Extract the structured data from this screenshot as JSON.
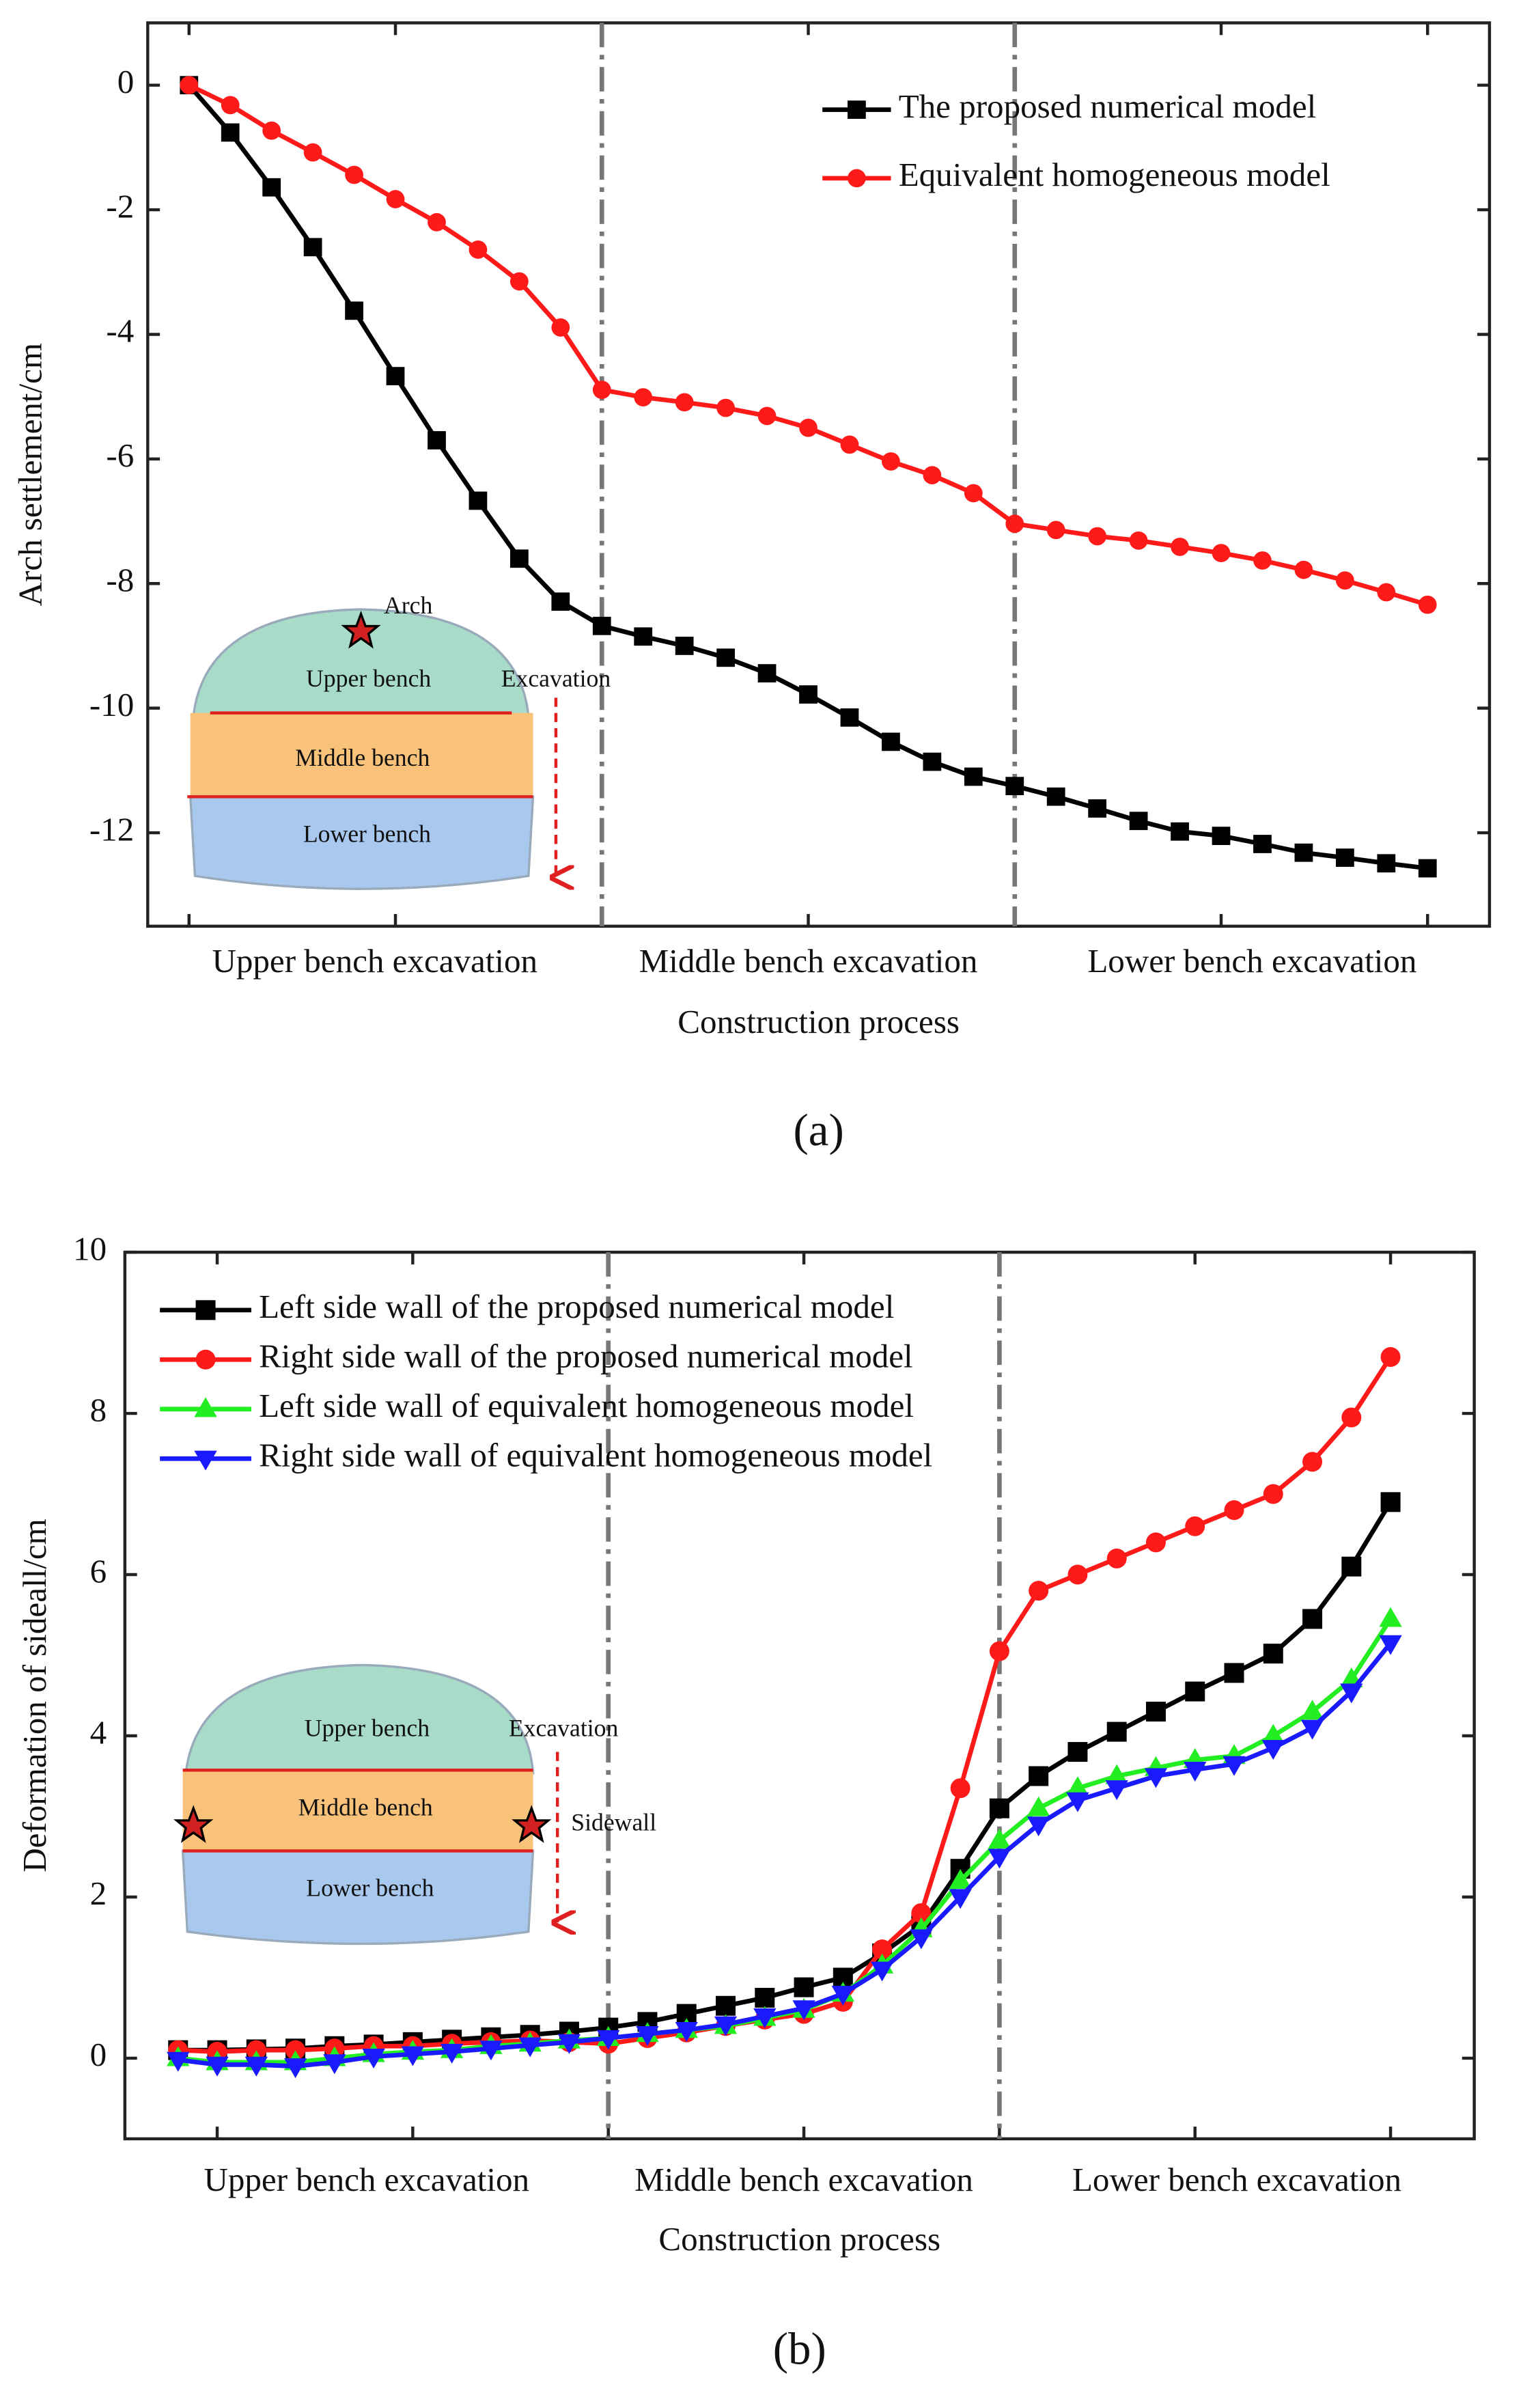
{
  "chart_data": [
    {
      "type": "line",
      "ylabel": "Arch settlement/cm",
      "xlabel": "Construction process",
      "caption": "(a)",
      "stage_labels": [
        "Upper bench excavation",
        "Middle bench excavation",
        "Lower bench excavation"
      ],
      "dividers": [
        10,
        20
      ],
      "x": [
        0,
        1,
        2,
        3,
        4,
        5,
        6,
        7,
        8,
        9,
        10,
        11,
        12,
        13,
        14,
        15,
        16,
        17,
        18,
        19,
        20,
        21,
        22,
        23,
        24,
        25,
        26,
        27,
        28,
        29,
        30
      ],
      "xlim": [
        -1,
        31.5
      ],
      "xticks": [
        0,
        5,
        10,
        15,
        20,
        25,
        30
      ],
      "ylim": [
        -13.5,
        1
      ],
      "yticks": [
        0,
        -2,
        -4,
        -6,
        -8,
        -10,
        -12
      ],
      "legend": "upper right",
      "inset_labels": [
        "Arch",
        "Upper bench",
        "Excavation",
        "Middle bench",
        "Lower bench"
      ],
      "series": [
        {
          "name": "The proposed numerical model",
          "color": "#000000",
          "marker": "square",
          "values": [
            0,
            -0.76,
            -1.64,
            -2.6,
            -3.62,
            -4.67,
            -5.7,
            -6.67,
            -7.6,
            -8.29,
            -8.68,
            -8.85,
            -9.0,
            -9.19,
            -9.44,
            -9.78,
            -10.15,
            -10.54,
            -10.86,
            -11.1,
            -11.25,
            -11.42,
            -11.61,
            -11.81,
            -11.98,
            -12.05,
            -12.18,
            -12.32,
            -12.4,
            -12.49,
            -12.57
          ]
        },
        {
          "name": "Equivalent homogeneous model",
          "color": "#ff1a1a",
          "marker": "circle",
          "values": [
            0,
            -0.32,
            -0.73,
            -1.08,
            -1.44,
            -1.83,
            -2.2,
            -2.64,
            -3.15,
            -3.89,
            -4.89,
            -5.01,
            -5.09,
            -5.18,
            -5.31,
            -5.5,
            -5.77,
            -6.04,
            -6.26,
            -6.55,
            -7.04,
            -7.14,
            -7.24,
            -7.31,
            -7.41,
            -7.51,
            -7.63,
            -7.78,
            -7.95,
            -8.14,
            -8.34
          ]
        }
      ]
    },
    {
      "type": "line",
      "ylabel": "Deformation of sideall/cm",
      "xlabel": "Construction process",
      "caption": "(b)",
      "stage_labels": [
        "Upper bench excavation",
        "Middle bench excavation",
        "Lower bench excavation"
      ],
      "dividers": [
        11,
        21
      ],
      "x": [
        0,
        1,
        2,
        3,
        4,
        5,
        6,
        7,
        8,
        9,
        10,
        11,
        12,
        13,
        14,
        15,
        16,
        17,
        18,
        19,
        20,
        21,
        22,
        23,
        24,
        25,
        26,
        27,
        28,
        29,
        30,
        31
      ],
      "xlim": [
        -1.36,
        33.14
      ],
      "xticks": [
        1,
        6,
        11,
        16,
        21,
        26,
        31
      ],
      "ylim": [
        -1,
        10
      ],
      "yticks": [
        0,
        2,
        4,
        6,
        8,
        10
      ],
      "legend": "upper left",
      "inset_labels": [
        "Upper bench",
        "Excavation",
        "Middle bench",
        "Sidewall",
        "Lower bench"
      ],
      "series": [
        {
          "name": "Left side wall of the proposed numerical model",
          "color": "#000000",
          "marker": "square",
          "values": [
            0.1,
            0.1,
            0.11,
            0.12,
            0.15,
            0.17,
            0.2,
            0.23,
            0.26,
            0.29,
            0.33,
            0.38,
            0.45,
            0.55,
            0.65,
            0.75,
            0.88,
            1.0,
            1.3,
            1.65,
            2.35,
            3.1,
            3.5,
            3.8,
            4.05,
            4.3,
            4.55,
            4.78,
            5.02,
            5.45,
            6.1,
            6.9
          ]
        },
        {
          "name": "Right side wall of the proposed numerical model",
          "color": "#ff1a1a",
          "marker": "circle",
          "values": [
            0.1,
            0.08,
            0.1,
            0.1,
            0.12,
            0.15,
            0.15,
            0.18,
            0.2,
            0.22,
            0.2,
            0.18,
            0.25,
            0.32,
            0.4,
            0.48,
            0.55,
            0.7,
            1.35,
            1.8,
            3.35,
            5.05,
            5.8,
            6.0,
            6.2,
            6.4,
            6.6,
            6.8,
            7.0,
            7.4,
            7.95,
            8.7
          ]
        },
        {
          "name": "Left side wall of equivalent homogeneous model",
          "color": "#22ee22",
          "marker": "triangle-up",
          "values": [
            0,
            -0.05,
            -0.05,
            -0.05,
            0.0,
            0.05,
            0.08,
            0.1,
            0.15,
            0.18,
            0.22,
            0.25,
            0.3,
            0.35,
            0.4,
            0.5,
            0.6,
            0.8,
            1.15,
            1.6,
            2.2,
            2.7,
            3.1,
            3.35,
            3.5,
            3.6,
            3.7,
            3.75,
            4.0,
            4.3,
            4.7,
            5.45
          ]
        },
        {
          "name": "Right side wall of equivalent homogeneous model",
          "color": "#1a1aff",
          "marker": "triangle-down",
          "values": [
            -0.02,
            -0.08,
            -0.08,
            -0.1,
            -0.05,
            0.02,
            0.05,
            0.08,
            0.12,
            0.16,
            0.2,
            0.25,
            0.3,
            0.35,
            0.42,
            0.52,
            0.62,
            0.8,
            1.1,
            1.5,
            2.0,
            2.5,
            2.9,
            3.2,
            3.35,
            3.5,
            3.58,
            3.65,
            3.85,
            4.1,
            4.55,
            5.15
          ]
        }
      ]
    }
  ]
}
